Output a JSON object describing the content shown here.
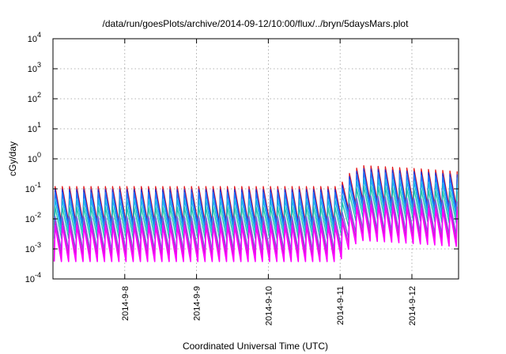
{
  "chart_data": {
    "type": "line",
    "title": "/data/run/goesPlots/archive/2014-09-12/10:00/flux/../bryn/5daysMars.plot",
    "xlabel": "Coordinated Universal Time (UTC)",
    "ylabel": "cGy/day",
    "yscale": "log",
    "ylim": [
      0.0001,
      10000
    ],
    "xlim": [
      0,
      5.65
    ],
    "grid": true,
    "yticks": [
      {
        "base": "10",
        "exp": "-4",
        "value": 0.0001
      },
      {
        "base": "10",
        "exp": "-3",
        "value": 0.001
      },
      {
        "base": "10",
        "exp": "-2",
        "value": 0.01
      },
      {
        "base": "10",
        "exp": "-1",
        "value": 0.1
      },
      {
        "base": "10",
        "exp": "0",
        "value": 1
      },
      {
        "base": "10",
        "exp": "1",
        "value": 10
      },
      {
        "base": "10",
        "exp": "2",
        "value": 100
      },
      {
        "base": "10",
        "exp": "3",
        "value": 1000
      },
      {
        "base": "10",
        "exp": "4",
        "value": 10000
      }
    ],
    "xticks": [
      {
        "label": "2014-9-8",
        "value": 1
      },
      {
        "label": "2014-9-9",
        "value": 2
      },
      {
        "label": "2014-9-10",
        "value": 3
      },
      {
        "label": "2014-9-11",
        "value": 4
      },
      {
        "label": "2014-9-12",
        "value": 5
      }
    ],
    "pattern": {
      "cycles_per_day": 10,
      "enhancement_start": 4.0,
      "enhancement_peak": 4.3,
      "enhancement_factor": 5
    },
    "series": [
      {
        "color": "#e4181c",
        "peak": 0.12,
        "trough": 0.008
      },
      {
        "color": "#2230d6",
        "peak": 0.095,
        "trough": 0.0065
      },
      {
        "color": "#1e7bff",
        "peak": 0.075,
        "trough": 0.005
      },
      {
        "color": "#16b4e8",
        "peak": 0.045,
        "trough": 0.0035
      },
      {
        "color": "#20c4a8",
        "peak": 0.025,
        "trough": 0.0022
      },
      {
        "color": "#7a5ce0",
        "peak": 0.012,
        "trough": 0.0009
      },
      {
        "color": "#c025c8",
        "peak": 0.008,
        "trough": 0.0006
      },
      {
        "color": "#ff00ff",
        "peak": 0.006,
        "trough": 0.00038
      }
    ]
  }
}
